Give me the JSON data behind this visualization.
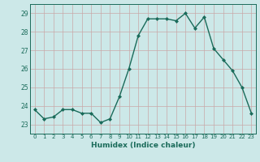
{
  "x": [
    0,
    1,
    2,
    3,
    4,
    5,
    6,
    7,
    8,
    9,
    10,
    11,
    12,
    13,
    14,
    15,
    16,
    17,
    18,
    19,
    20,
    21,
    22,
    23
  ],
  "y": [
    23.8,
    23.3,
    23.4,
    23.8,
    23.8,
    23.6,
    23.6,
    23.1,
    23.3,
    24.5,
    26.0,
    27.8,
    28.7,
    28.7,
    28.7,
    28.6,
    29.0,
    28.2,
    28.8,
    27.1,
    26.5,
    25.9,
    25.0,
    23.6
  ],
  "xlabel": "Humidex (Indice chaleur)",
  "ylim": [
    22.5,
    29.5
  ],
  "xlim": [
    -0.5,
    23.5
  ],
  "yticks": [
    23,
    24,
    25,
    26,
    27,
    28,
    29
  ],
  "xticks": [
    0,
    1,
    2,
    3,
    4,
    5,
    6,
    7,
    8,
    9,
    10,
    11,
    12,
    13,
    14,
    15,
    16,
    17,
    18,
    19,
    20,
    21,
    22,
    23
  ],
  "line_color": "#1a6b5a",
  "marker": "D",
  "marker_size": 2.0,
  "bg_color": "#cce8e8",
  "grid_color": "#c8a8a8",
  "tick_label_color": "#1a6b5a",
  "xlabel_color": "#1a6b5a",
  "line_width": 1.0
}
